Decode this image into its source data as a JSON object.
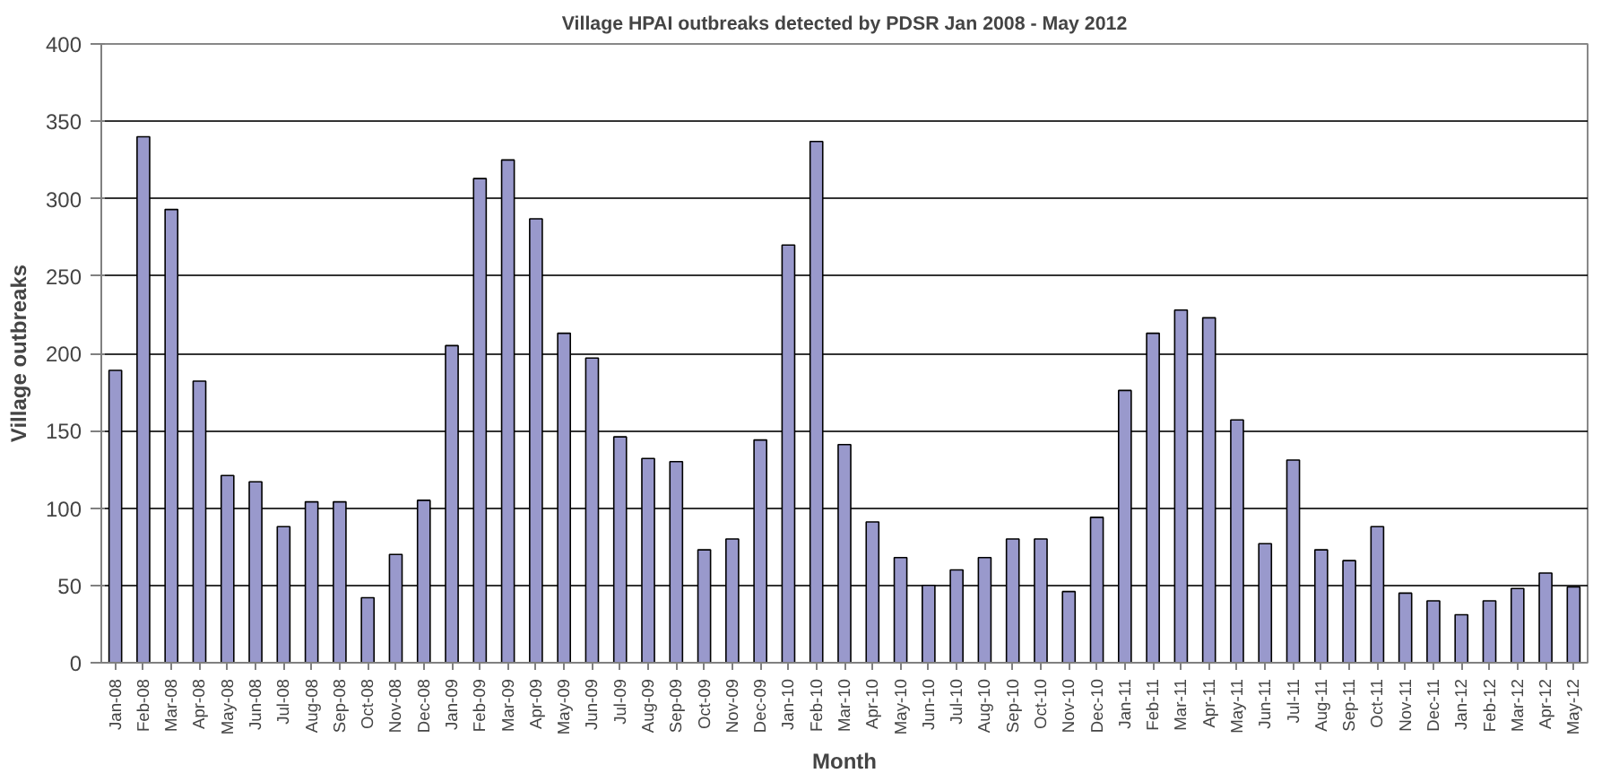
{
  "chart_data": {
    "type": "bar",
    "title": "Village HPAI outbreaks detected by PDSR Jan 2008 - May 2012",
    "xlabel": "Month",
    "ylabel": "Village outbreaks",
    "categories": [
      "Jan-08",
      "Feb-08",
      "Mar-08",
      "Apr-08",
      "May-08",
      "Jun-08",
      "Jul-08",
      "Aug-08",
      "Sep-08",
      "Oct-08",
      "Nov-08",
      "Dec-08",
      "Jan-09",
      "Feb-09",
      "Mar-09",
      "Apr-09",
      "May-09",
      "Jun-09",
      "Jul-09",
      "Aug-09",
      "Sep-09",
      "Oct-09",
      "Nov-09",
      "Dec-09",
      "Jan-10",
      "Feb-10",
      "Mar-10",
      "Apr-10",
      "May-10",
      "Jun-10",
      "Jul-10",
      "Aug-10",
      "Sep-10",
      "Oct-10",
      "Nov-10",
      "Dec-10",
      "Jan-11",
      "Feb-11",
      "Mar-11",
      "Apr-11",
      "May-11",
      "Jun-11",
      "Jul-11",
      "Aug-11",
      "Sep-11",
      "Oct-11",
      "Nov-11",
      "Dec-11",
      "Jan-12",
      "Feb-12",
      "Mar-12",
      "Apr-12",
      "May-12"
    ],
    "values": [
      189,
      340,
      293,
      182,
      121,
      117,
      88,
      104,
      104,
      42,
      70,
      105,
      205,
      313,
      325,
      287,
      213,
      197,
      146,
      132,
      130,
      73,
      80,
      144,
      270,
      337,
      141,
      91,
      68,
      50,
      60,
      68,
      80,
      80,
      46,
      94,
      176,
      213,
      228,
      223,
      157,
      77,
      131,
      73,
      66,
      88,
      45,
      40,
      31,
      40,
      48,
      58,
      49
    ],
    "color": "#9999cc",
    "ylim": [
      0,
      400
    ],
    "yticks": [
      0,
      50,
      100,
      150,
      200,
      250,
      300,
      350,
      400
    ],
    "grid": "y"
  }
}
